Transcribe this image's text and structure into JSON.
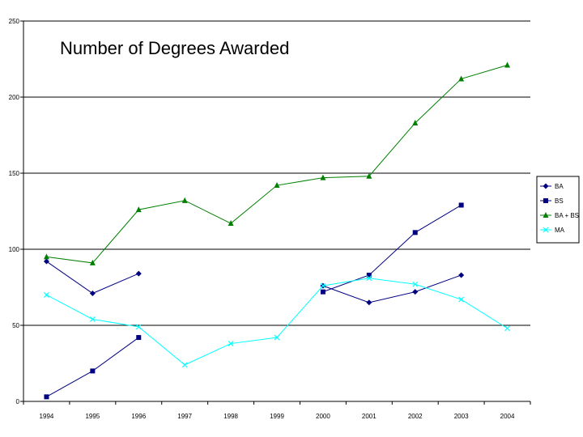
{
  "chart_data": {
    "type": "line",
    "title": "Number of Degrees Awarded",
    "xlabel": "",
    "ylabel": "",
    "categories": [
      "1994",
      "1995",
      "1996",
      "1997",
      "1998",
      "1999",
      "2000",
      "2001",
      "2002",
      "2003",
      "2004"
    ],
    "ylim": [
      0,
      250
    ],
    "yticks": [
      0,
      50,
      100,
      150,
      200,
      250
    ],
    "grid": "horizontal",
    "legend_position": "right",
    "series": [
      {
        "name": "BA",
        "color": "#000080",
        "marker": "diamond",
        "values": [
          92,
          71,
          84,
          null,
          null,
          null,
          76,
          65,
          72,
          83,
          null
        ]
      },
      {
        "name": "BS",
        "color": "#000080",
        "marker": "square",
        "values": [
          3,
          20,
          42,
          null,
          null,
          null,
          72,
          83,
          111,
          129,
          null
        ]
      },
      {
        "name": "BA + BS",
        "color": "#008000",
        "marker": "triangle",
        "values": [
          95,
          91,
          126,
          132,
          117,
          142,
          147,
          148,
          183,
          212,
          221
        ]
      },
      {
        "name": "MA",
        "color": "#00FFFF",
        "marker": "x",
        "values": [
          70,
          54,
          49,
          24,
          38,
          42,
          76,
          81,
          77,
          67,
          48
        ]
      }
    ]
  }
}
